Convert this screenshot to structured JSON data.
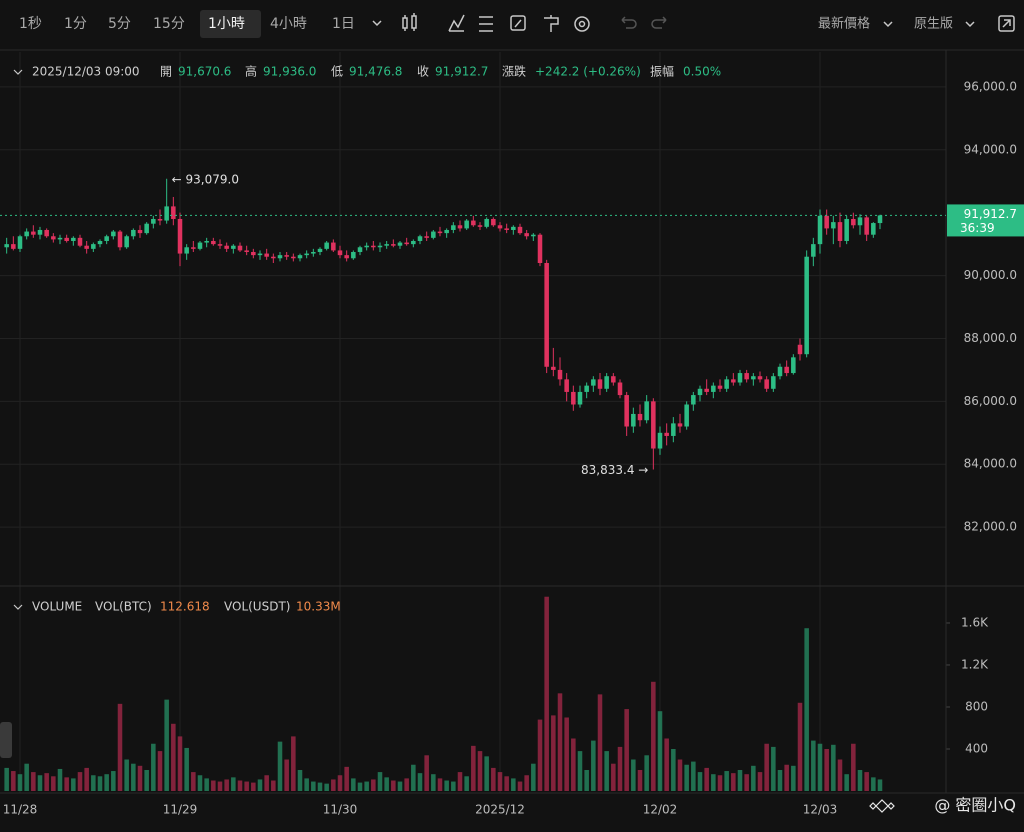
{
  "toolbar": {
    "intervals": [
      "1秒",
      "1分",
      "5分",
      "15分",
      "1小時",
      "4小時",
      "1日"
    ],
    "price_type": "最新價格",
    "view": "原生版"
  },
  "ohlc_info": {
    "datetime": "2025/12/03 09:00",
    "items": [
      {
        "label": "開",
        "value": "91,670.6"
      },
      {
        "label": "高",
        "value": "91,936.0"
      },
      {
        "label": "低",
        "value": "91,476.8"
      },
      {
        "label": "收",
        "value": "91,912.7"
      },
      {
        "label": "漲跌",
        "value": "+242.2 (+0.26%)"
      },
      {
        "label": "振幅",
        "value": "0.50%"
      }
    ]
  },
  "watermark": "@ 密圈小Q",
  "chart_data": {
    "type": "candlestick",
    "bull_color": "#2dbd85",
    "bear_color": "#e0325f",
    "grid": true,
    "candles": [
      [
        90900,
        91200,
        90700,
        91000
      ],
      [
        91000,
        91250,
        90800,
        90850
      ],
      [
        90850,
        91300,
        90750,
        91250
      ],
      [
        91250,
        91500,
        91150,
        91400
      ],
      [
        91400,
        91600,
        91200,
        91300
      ],
      [
        91300,
        91550,
        91150,
        91450
      ],
      [
        91450,
        91500,
        91200,
        91250
      ],
      [
        91250,
        91350,
        91050,
        91150
      ],
      [
        91150,
        91300,
        91000,
        91200
      ],
      [
        91200,
        91300,
        91050,
        91100
      ],
      [
        91100,
        91250,
        90950,
        91200
      ],
      [
        91200,
        91300,
        90900,
        90950
      ],
      [
        90950,
        91100,
        90700,
        90850
      ],
      [
        90850,
        91050,
        90750,
        91000
      ],
      [
        91000,
        91150,
        90900,
        91100
      ],
      [
        91100,
        91300,
        91000,
        91250
      ],
      [
        91250,
        91450,
        91150,
        91400
      ],
      [
        91400,
        91450,
        90800,
        90900
      ],
      [
        90900,
        91300,
        90850,
        91250
      ],
      [
        91250,
        91500,
        91150,
        91450
      ],
      [
        91450,
        91600,
        91200,
        91350
      ],
      [
        91350,
        91700,
        91300,
        91650
      ],
      [
        91650,
        91900,
        91500,
        91800
      ],
      [
        91800,
        92100,
        91600,
        91750
      ],
      [
        91750,
        93079,
        91650,
        92200
      ],
      [
        92200,
        92500,
        91600,
        91800
      ],
      [
        91800,
        92000,
        90300,
        90700
      ],
      [
        90700,
        91000,
        90500,
        90900
      ],
      [
        90900,
        91100,
        90750,
        90850
      ],
      [
        90850,
        91100,
        90800,
        91050
      ],
      [
        91050,
        91200,
        90900,
        91100
      ],
      [
        91100,
        91200,
        90950,
        91000
      ],
      [
        91000,
        91150,
        90850,
        90950
      ],
      [
        90950,
        91050,
        90750,
        90850
      ],
      [
        90850,
        91000,
        90700,
        90950
      ],
      [
        90950,
        91050,
        90750,
        90800
      ],
      [
        90800,
        90950,
        90650,
        90750
      ],
      [
        90750,
        90850,
        90550,
        90650
      ],
      [
        90650,
        90800,
        90500,
        90700
      ],
      [
        90700,
        90850,
        90500,
        90600
      ],
      [
        90600,
        90700,
        90400,
        90550
      ],
      [
        90550,
        90750,
        90450,
        90650
      ],
      [
        90650,
        90750,
        90500,
        90600
      ],
      [
        90600,
        90700,
        90450,
        90550
      ],
      [
        90550,
        90700,
        90450,
        90650
      ],
      [
        90650,
        90800,
        90550,
        90700
      ],
      [
        90700,
        90850,
        90600,
        90750
      ],
      [
        90750,
        90900,
        90650,
        90850
      ],
      [
        90850,
        91100,
        90800,
        91050
      ],
      [
        91050,
        91150,
        90750,
        90800
      ],
      [
        90800,
        90950,
        90550,
        90650
      ],
      [
        90650,
        90800,
        90450,
        90550
      ],
      [
        90550,
        90800,
        90500,
        90750
      ],
      [
        90750,
        90950,
        90650,
        90900
      ],
      [
        90900,
        91050,
        90800,
        90950
      ],
      [
        90950,
        91100,
        90800,
        90900
      ],
      [
        90900,
        91050,
        90750,
        90950
      ],
      [
        90950,
        91100,
        90850,
        91000
      ],
      [
        91000,
        91150,
        90900,
        90950
      ],
      [
        90950,
        91100,
        90850,
        91050
      ],
      [
        91050,
        91200,
        90950,
        91000
      ],
      [
        91000,
        91150,
        90900,
        91100
      ],
      [
        91100,
        91300,
        91000,
        91250
      ],
      [
        91250,
        91400,
        91100,
        91200
      ],
      [
        91200,
        91450,
        91150,
        91400
      ],
      [
        91400,
        91550,
        91250,
        91350
      ],
      [
        91350,
        91500,
        91200,
        91450
      ],
      [
        91450,
        91700,
        91350,
        91600
      ],
      [
        91600,
        91750,
        91400,
        91500
      ],
      [
        91500,
        91800,
        91450,
        91750
      ],
      [
        91750,
        91900,
        91550,
        91600
      ],
      [
        91600,
        91700,
        91450,
        91550
      ],
      [
        91550,
        91850,
        91500,
        91800
      ],
      [
        91800,
        91850,
        91550,
        91600
      ],
      [
        91600,
        91700,
        91400,
        91500
      ],
      [
        91500,
        91650,
        91350,
        91450
      ],
      [
        91450,
        91600,
        91300,
        91550
      ],
      [
        91550,
        91650,
        91300,
        91350
      ],
      [
        91350,
        91450,
        91150,
        91250
      ],
      [
        91250,
        91350,
        91100,
        91300
      ],
      [
        91300,
        91350,
        90300,
        90400
      ],
      [
        90400,
        90500,
        86900,
        87100
      ],
      [
        87100,
        87700,
        86800,
        87000
      ],
      [
        87000,
        87400,
        86500,
        86700
      ],
      [
        86700,
        86900,
        86000,
        86300
      ],
      [
        86300,
        86500,
        85700,
        85900
      ],
      [
        85900,
        86500,
        85800,
        86300
      ],
      [
        86300,
        86600,
        86100,
        86500
      ],
      [
        86500,
        86800,
        86300,
        86700
      ],
      [
        86700,
        86900,
        86200,
        86400
      ],
      [
        86400,
        86900,
        86300,
        86800
      ],
      [
        86800,
        86900,
        86500,
        86600
      ],
      [
        86600,
        86700,
        86100,
        86200
      ],
      [
        86200,
        86300,
        84900,
        85200
      ],
      [
        85200,
        85800,
        85000,
        85600
      ],
      [
        85600,
        85900,
        85200,
        85400
      ],
      [
        85400,
        86200,
        85300,
        86000
      ],
      [
        86000,
        86100,
        83833.4,
        84500
      ],
      [
        84500,
        85200,
        84300,
        85000
      ],
      [
        85000,
        85300,
        84600,
        84900
      ],
      [
        84900,
        85500,
        84700,
        85300
      ],
      [
        85300,
        85600,
        85000,
        85200
      ],
      [
        85200,
        86000,
        85100,
        85900
      ],
      [
        85900,
        86300,
        85700,
        86200
      ],
      [
        86200,
        86500,
        86000,
        86400
      ],
      [
        86400,
        86700,
        86200,
        86300
      ],
      [
        86300,
        86600,
        86100,
        86500
      ],
      [
        86500,
        86700,
        86300,
        86400
      ],
      [
        86400,
        86800,
        86300,
        86700
      ],
      [
        86700,
        86900,
        86500,
        86600
      ],
      [
        86600,
        87000,
        86500,
        86900
      ],
      [
        86900,
        87000,
        86600,
        86700
      ],
      [
        86700,
        86900,
        86500,
        86800
      ],
      [
        86800,
        86950,
        86600,
        86700
      ],
      [
        86700,
        86800,
        86300,
        86400
      ],
      [
        86400,
        86900,
        86300,
        86800
      ],
      [
        86800,
        87200,
        86700,
        87100
      ],
      [
        87100,
        87300,
        86800,
        86900
      ],
      [
        86900,
        87500,
        86850,
        87400
      ],
      [
        87800,
        88000,
        87300,
        87500
      ],
      [
        87500,
        90800,
        87400,
        90600
      ],
      [
        90600,
        91200,
        90300,
        91000
      ],
      [
        91000,
        92100,
        90700,
        91900
      ],
      [
        91900,
        92100,
        91300,
        91500
      ],
      [
        91500,
        91900,
        91000,
        91700
      ],
      [
        91700,
        92000,
        90900,
        91100
      ],
      [
        91100,
        91900,
        91000,
        91800
      ],
      [
        91800,
        92000,
        91500,
        91600
      ],
      [
        91600,
        91950,
        91300,
        91850
      ],
      [
        91850,
        91900,
        91100,
        91300
      ],
      [
        91300,
        91700,
        91200,
        91670.6
      ],
      [
        91670.6,
        91936,
        91476.8,
        91912.7
      ]
    ],
    "volumes": [
      220,
      190,
      160,
      260,
      180,
      150,
      170,
      140,
      210,
      130,
      120,
      180,
      220,
      150,
      140,
      160,
      190,
      830,
      300,
      260,
      240,
      200,
      450,
      380,
      870,
      640,
      520,
      410,
      180,
      150,
      120,
      100,
      90,
      110,
      130,
      100,
      90,
      80,
      110,
      150,
      100,
      470,
      300,
      520,
      200,
      120,
      90,
      80,
      70,
      110,
      150,
      230,
      120,
      80,
      90,
      110,
      180,
      130,
      100,
      90,
      120,
      250,
      170,
      340,
      160,
      120,
      100,
      90,
      180,
      140,
      430,
      380,
      330,
      220,
      180,
      140,
      120,
      90,
      150,
      260,
      680,
      1850,
      720,
      930,
      700,
      500,
      380,
      200,
      480,
      920,
      380,
      260,
      420,
      780,
      300,
      200,
      340,
      1040,
      760,
      500,
      400,
      300,
      250,
      280,
      180,
      220,
      160,
      150,
      190,
      170,
      200,
      160,
      240,
      180,
      450,
      420,
      200,
      250,
      240,
      840,
      1550,
      480,
      450,
      400,
      440,
      300,
      160,
      450,
      200,
      180,
      130,
      110
    ],
    "xlim": [
      -1,
      140.9
    ],
    "xticks": [
      {
        "value": 2,
        "label": "11/28"
      },
      {
        "value": 26,
        "label": "11/29"
      },
      {
        "value": 50,
        "label": "11/30"
      },
      {
        "value": 74,
        "label": "2025/12"
      },
      {
        "value": 98,
        "label": "12/02"
      },
      {
        "value": 122,
        "label": "12/03"
      }
    ],
    "ylim": [
      80160,
      97110
    ],
    "yticks": [
      {
        "value": 82000,
        "label": "82,000.0"
      },
      {
        "value": 84000,
        "label": "84,000.0"
      },
      {
        "value": 86000,
        "label": "86,000.0"
      },
      {
        "value": 88000,
        "label": "88,000.0"
      },
      {
        "value": 90000,
        "label": "90,000.0"
      },
      {
        "value": 94000,
        "label": "94,000.0"
      },
      {
        "value": 96000,
        "label": "96,000.0"
      }
    ],
    "vol_ylim": [
      0,
      1933
    ],
    "vol_yticks": [
      400,
      800,
      {
        "value": 1200,
        "label": "1.2K"
      },
      {
        "value": 1600,
        "label": "1.6K"
      }
    ],
    "high_annotation": "← 93,079.0",
    "low_annotation": "83,833.4 →",
    "last_price": {
      "label": "91,912.7",
      "countdown": "36:39"
    },
    "volume_legend": {
      "title": "VOLUME",
      "items": [
        {
          "label": "VOL(BTC)",
          "value": "112.618"
        },
        {
          "label": "VOL(USDT)",
          "value": "10.33M"
        }
      ]
    }
  }
}
